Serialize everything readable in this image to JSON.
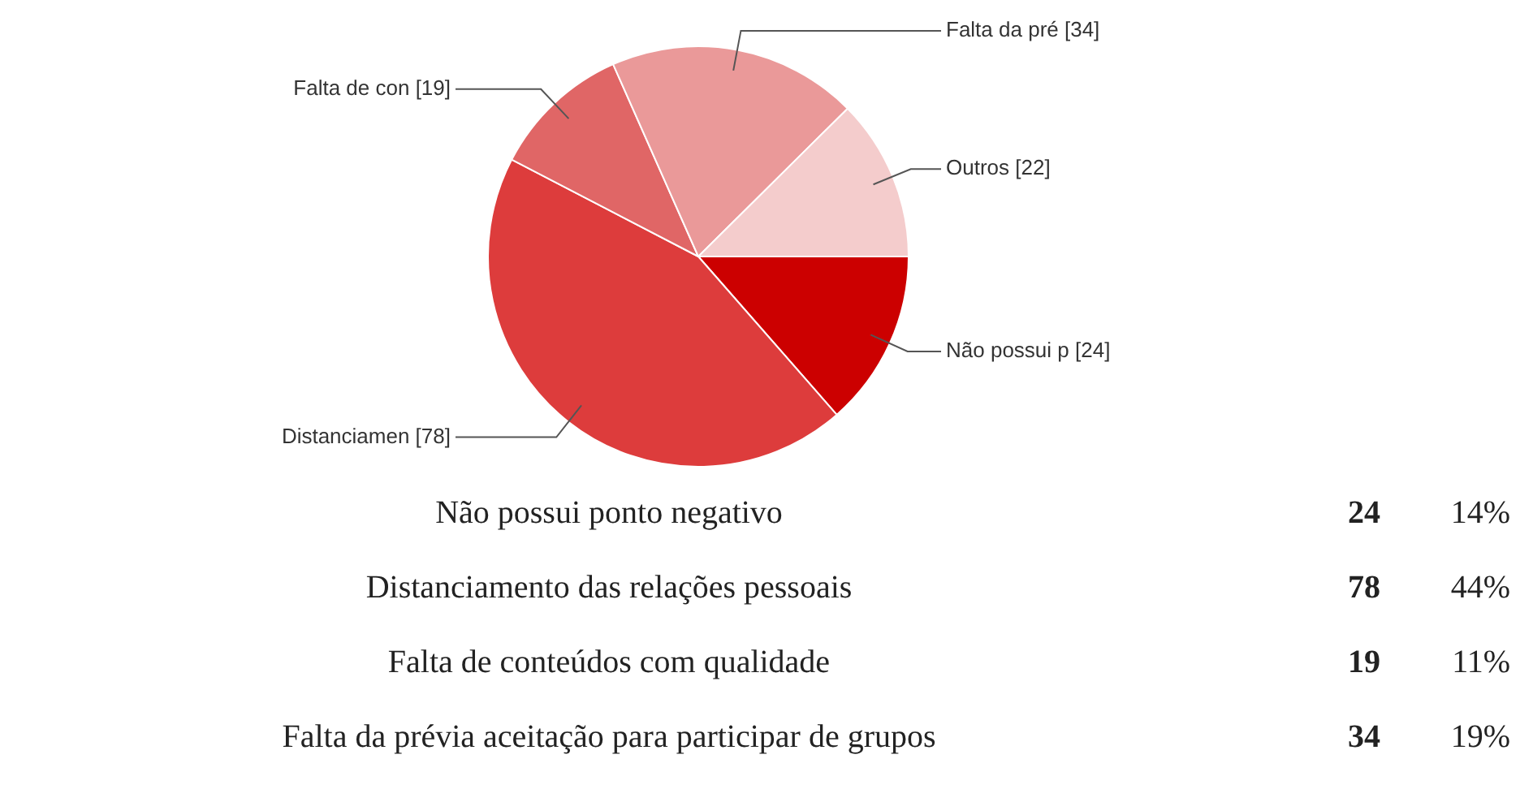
{
  "chart_data": {
    "type": "pie",
    "categories": [
      "Não possui p",
      "Distanciamen",
      "Falta de con",
      "Falta da pré",
      "Outros"
    ],
    "values": [
      24,
      78,
      19,
      34,
      22
    ],
    "value_labels": [
      "[24]",
      "[78]",
      "[19]",
      "[34]",
      "[22]"
    ],
    "colors": [
      "#cc0000",
      "#dd3c3c",
      "#e06666",
      "#ea9999",
      "#f4cccc"
    ],
    "legend": false,
    "annotations": [
      "Não possui ponto negativo",
      "24",
      "14%",
      "Distanciamento das relações pessoais",
      "78",
      "44%",
      "Falta de conteúdos com qualidade",
      "19",
      "11%",
      "Falta da prévia aceitação para participar de grupos",
      "34",
      "19%"
    ]
  }
}
